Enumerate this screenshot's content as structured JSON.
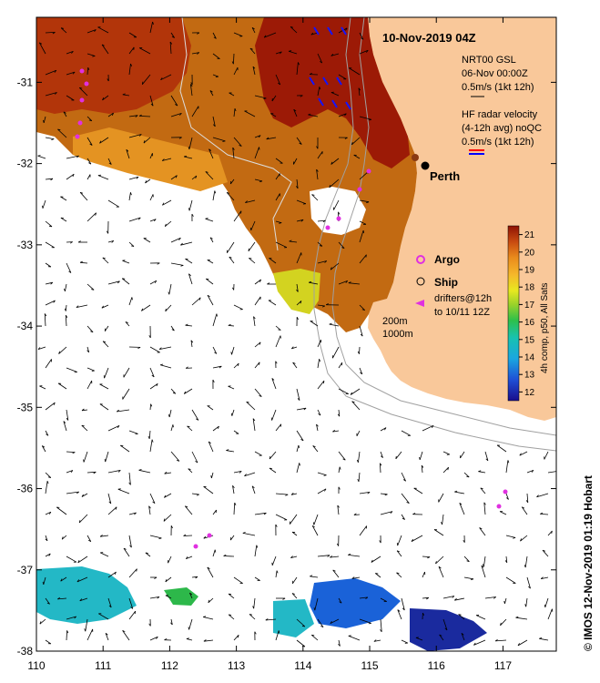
{
  "map": {
    "title": "10-Nov-2019 04Z",
    "city": "Perth",
    "credit": "© IMOS 12-Nov-2019 01:19 Hobart",
    "lon_ticks": [
      "110",
      "111",
      "112",
      "113",
      "114",
      "115",
      "116",
      "117"
    ],
    "lat_ticks": [
      "-31",
      "-32",
      "-33",
      "-34",
      "-35",
      "-36",
      "-37",
      "-38"
    ],
    "lon_range": [
      110,
      117.8
    ],
    "lat_range": [
      -30.2,
      -38.0
    ],
    "legend": {
      "nrt_line1": "NRT00 GSL",
      "nrt_line2": "06-Nov 00:00Z",
      "nrt_line3": "0.5m/s (1kt 12h)",
      "hf_line1": "HF radar velocity",
      "hf_line2": "(4-12h avg) noQC",
      "hf_line3": "0.5m/s (1kt 12h)",
      "argo": "Argo",
      "ship": "Ship",
      "drifters_line1": "drifters@12h",
      "drifters_line2": "to 10/11 12Z",
      "iso_200": "200m",
      "iso_1000": "1000m"
    },
    "colorbar": {
      "label": "4h comp, p50, All Sats",
      "min": 11.5,
      "max": 21.5,
      "ticks": [
        "21",
        "20",
        "19",
        "18",
        "17",
        "16",
        "15",
        "14",
        "13",
        "12"
      ]
    },
    "colors": {
      "land": "#f9c89a",
      "ocean": "#ffffff",
      "argo": "#e030e0",
      "drifter": "#e030e0",
      "hf_arrow_red": "#ff0000",
      "hf_arrow_blue": "#0000ff"
    }
  }
}
